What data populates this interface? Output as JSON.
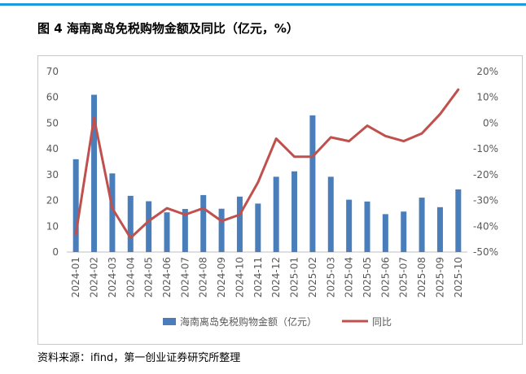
{
  "figure": {
    "title": "图 4 海南离岛免税购物金额及同比（亿元，%）"
  },
  "source": "资料来源：ifind，第一创业证券研究所整理",
  "colors": {
    "bar": "#4a7ebb",
    "line": "#c0504d",
    "accent_rule": "#1a9be0"
  },
  "chart_data": {
    "type": "bar",
    "categories": [
      "2024-01",
      "2024-02",
      "2024-03",
      "2024-04",
      "2024-05",
      "2024-06",
      "2024-07",
      "2024-08",
      "2024-09",
      "2024-10",
      "2024-11",
      "2024-12",
      "2025-01",
      "2025-02",
      "2025-03",
      "2025-04",
      "2025-05",
      "2025-06",
      "2025-07",
      "2025-08",
      "2025-09",
      "2025-10"
    ],
    "series": [
      {
        "name": "海南离岛免税购物金额（亿元）",
        "type": "bar",
        "axis": "left",
        "values": [
          36,
          61,
          30.5,
          21.8,
          19.7,
          15.4,
          16.7,
          22.1,
          16.8,
          21.5,
          18.8,
          29.2,
          31.3,
          53,
          29.2,
          20.3,
          19.6,
          14.7,
          15.7,
          21.1,
          17.4,
          24.3
        ]
      },
      {
        "name": "同比",
        "type": "line",
        "axis": "right",
        "values": [
          -43,
          2,
          -33,
          -44.5,
          -38,
          -33,
          -35.5,
          -33,
          -38,
          -35.5,
          -23,
          -6,
          -13,
          -13,
          -5.5,
          -7,
          -1,
          -5,
          -7,
          -4,
          3.5,
          13
        ]
      }
    ],
    "y_left": {
      "min": 0,
      "max": 70,
      "step": 10,
      "ticks": [
        "0",
        "10",
        "20",
        "30",
        "40",
        "50",
        "60",
        "70"
      ]
    },
    "y_right": {
      "min": -50,
      "max": 20,
      "step": 10,
      "ticks": [
        "-50%",
        "-40%",
        "-30%",
        "-20%",
        "-10%",
        "0%",
        "10%",
        "20%"
      ]
    },
    "grid": false,
    "legend": "bottom"
  }
}
